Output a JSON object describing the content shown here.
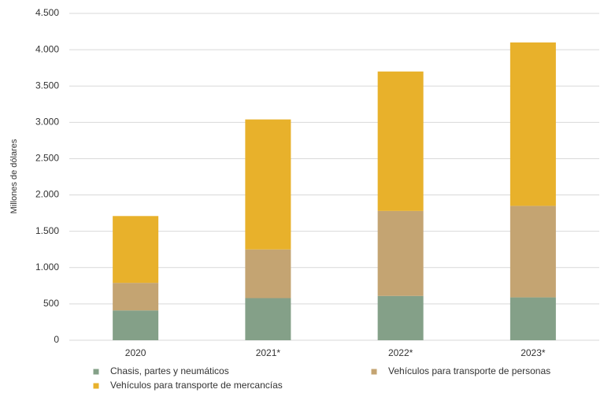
{
  "chart_data": {
    "type": "stacked_bar",
    "y_label": "Millones de dólares",
    "categories": [
      "2020",
      "2021*",
      "2022*",
      "2023*"
    ],
    "series": [
      {
        "name": "Chasis, partes y neumáticos",
        "color": "#84a088",
        "values": [
          410,
          580,
          610,
          590
        ]
      },
      {
        "name": "Vehículos para transporte de personas",
        "color": "#c4a472",
        "values": [
          380,
          670,
          1170,
          1260
        ]
      },
      {
        "name": "Vehículos para transporte de mercancías",
        "color": "#e8b12b",
        "values": [
          920,
          1790,
          1920,
          2250
        ]
      }
    ],
    "ylim": [
      0,
      4500
    ],
    "yticks": [
      0,
      500,
      {
        "value": 1000,
        "label": "1.000"
      },
      {
        "value": 1500,
        "label": "1.500"
      },
      {
        "value": 2000,
        "label": "2.000"
      },
      {
        "value": 2500,
        "label": "2.500"
      },
      {
        "value": 3000,
        "label": "3.000"
      },
      {
        "value": 3500,
        "label": "3.500"
      },
      {
        "value": 4000,
        "label": "4.000"
      },
      {
        "value": 4500,
        "label": "4.500"
      }
    ],
    "grid": true
  }
}
